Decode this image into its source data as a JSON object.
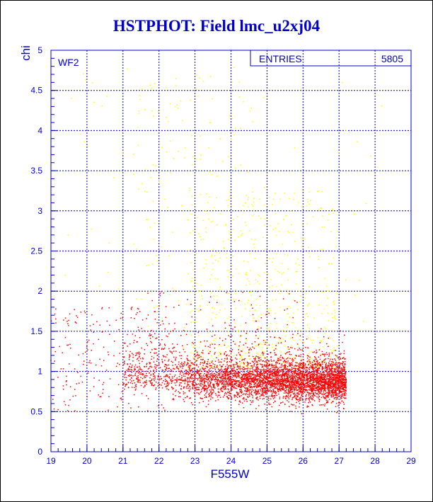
{
  "title": "HSTPHOT: Field lmc_u2xj04",
  "colors": {
    "axis": "#0000cc",
    "grid": "#0000cc",
    "inner": "#ff0000",
    "outer": "#ffff00",
    "title": "#0000cc"
  },
  "chart_data": {
    "type": "scatter",
    "title": "HSTPHOT: Field lmc_u2xj04",
    "xlabel": "F555W",
    "ylabel": "chi",
    "xlim": [
      19,
      29
    ],
    "ylim": [
      0,
      5
    ],
    "grid": true,
    "panel_label": "WF2",
    "stats_box": {
      "label": "ENTRIES",
      "value": "5805"
    },
    "x_ticks": [
      "19",
      "20",
      "21",
      "22",
      "23",
      "24",
      "25",
      "26",
      "27",
      "28",
      "29"
    ],
    "y_ticks": [
      "0",
      "0.5",
      "1",
      "1.5",
      "2",
      "2.5",
      "3",
      "3.5",
      "4",
      "4.5",
      "5"
    ],
    "series": [
      {
        "color": "#ff0000",
        "description": "dense cloud",
        "x_range": [
          19,
          27.2
        ],
        "y_range": [
          0.4,
          2.0
        ],
        "core": {
          "x": [
            22.5,
            27.2
          ],
          "y": [
            0.6,
            1.2
          ]
        }
      },
      {
        "color": "#ffff00",
        "description": "sparse scatter",
        "x_range": [
          21,
          28.5
        ],
        "y_range": [
          1.0,
          4.8
        ]
      }
    ]
  }
}
